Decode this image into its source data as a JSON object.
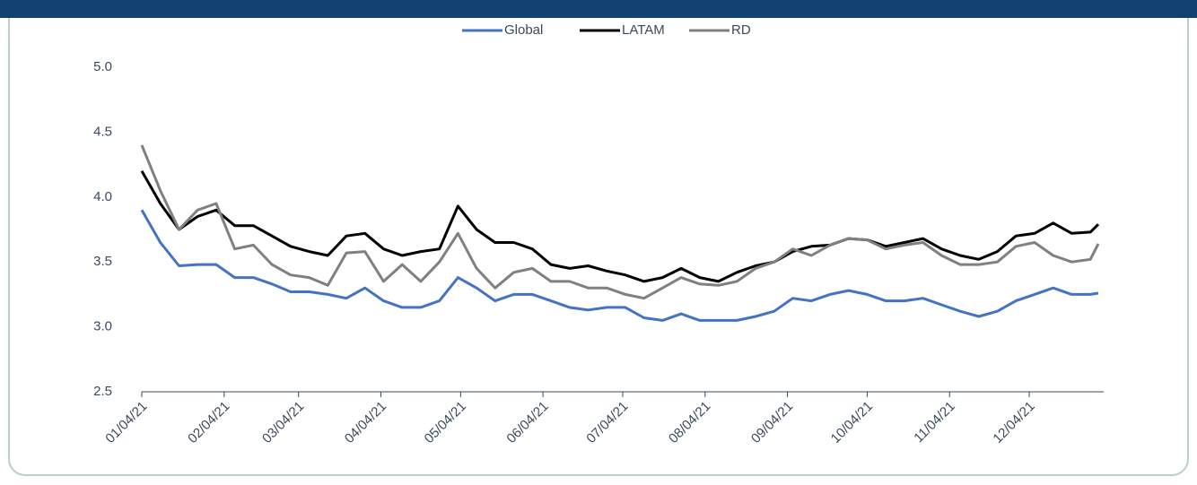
{
  "chart_data": {
    "type": "line",
    "x": [
      "01/04/21",
      "01/11/21",
      "01/18/21",
      "01/25/21",
      "02/01/21",
      "02/08/21",
      "02/15/21",
      "02/22/21",
      "03/01/21",
      "03/08/21",
      "03/15/21",
      "03/22/21",
      "03/29/21",
      "04/05/21",
      "04/12/21",
      "04/19/21",
      "04/26/21",
      "05/03/21",
      "05/10/21",
      "05/17/21",
      "05/24/21",
      "05/31/21",
      "06/07/21",
      "06/14/21",
      "06/21/21",
      "06/28/21",
      "07/05/21",
      "07/12/21",
      "07/19/21",
      "07/26/21",
      "08/02/21",
      "08/09/21",
      "08/16/21",
      "08/23/21",
      "08/30/21",
      "09/06/21",
      "09/13/21",
      "09/20/21",
      "09/27/21",
      "10/04/21",
      "10/11/21",
      "10/18/21",
      "10/25/21",
      "11/01/21",
      "11/08/21",
      "11/15/21",
      "11/22/21",
      "11/29/21",
      "12/06/21",
      "12/13/21",
      "12/20/21",
      "12/27/21",
      "12/30/21"
    ],
    "series": [
      {
        "name": "Global",
        "color": "#4472c4",
        "values": [
          3.9,
          3.65,
          3.47,
          3.48,
          3.48,
          3.38,
          3.38,
          3.33,
          3.27,
          3.27,
          3.25,
          3.22,
          3.3,
          3.2,
          3.15,
          3.15,
          3.2,
          3.38,
          3.3,
          3.2,
          3.25,
          3.25,
          3.2,
          3.15,
          3.13,
          3.15,
          3.15,
          3.07,
          3.05,
          3.1,
          3.05,
          3.05,
          3.05,
          3.08,
          3.12,
          3.22,
          3.2,
          3.25,
          3.28,
          3.25,
          3.2,
          3.2,
          3.22,
          3.17,
          3.12,
          3.08,
          3.12,
          3.2,
          3.25,
          3.3,
          3.25,
          3.25,
          3.26
        ]
      },
      {
        "name": "LATAM",
        "color": "#000000",
        "values": [
          4.2,
          3.95,
          3.75,
          3.85,
          3.9,
          3.78,
          3.78,
          3.7,
          3.62,
          3.58,
          3.55,
          3.7,
          3.72,
          3.6,
          3.55,
          3.58,
          3.6,
          3.93,
          3.75,
          3.65,
          3.65,
          3.6,
          3.48,
          3.45,
          3.47,
          3.43,
          3.4,
          3.35,
          3.38,
          3.45,
          3.38,
          3.35,
          3.42,
          3.47,
          3.5,
          3.58,
          3.62,
          3.63,
          3.68,
          3.67,
          3.62,
          3.65,
          3.68,
          3.6,
          3.55,
          3.52,
          3.58,
          3.7,
          3.72,
          3.8,
          3.72,
          3.73,
          3.79
        ]
      },
      {
        "name": "RD",
        "color": "#808080",
        "values": [
          4.4,
          4.05,
          3.75,
          3.9,
          3.95,
          3.6,
          3.63,
          3.48,
          3.4,
          3.38,
          3.32,
          3.57,
          3.58,
          3.35,
          3.48,
          3.35,
          3.5,
          3.72,
          3.45,
          3.3,
          3.42,
          3.45,
          3.35,
          3.35,
          3.3,
          3.3,
          3.25,
          3.22,
          3.3,
          3.38,
          3.33,
          3.32,
          3.35,
          3.45,
          3.5,
          3.6,
          3.55,
          3.63,
          3.68,
          3.67,
          3.6,
          3.63,
          3.65,
          3.55,
          3.48,
          3.48,
          3.5,
          3.62,
          3.65,
          3.55,
          3.5,
          3.52,
          3.64
        ]
      }
    ],
    "xlim": [
      "01/04/21",
      "12/31/21"
    ],
    "xticks": [
      "01/04/21",
      "02/04/21",
      "03/04/21",
      "04/04/21",
      "05/04/21",
      "06/04/21",
      "07/04/21",
      "08/04/21",
      "09/04/21",
      "10/04/21",
      "11/04/21",
      "12/04/21"
    ],
    "ylim": [
      2.5,
      5
    ],
    "yticks": [
      2.5,
      {
        "value": 3,
        "label": "3.0"
      },
      3.5,
      {
        "value": 4,
        "label": "4.0"
      },
      4.5,
      {
        "value": 5,
        "label": "5.0"
      }
    ],
    "legend": "top"
  }
}
